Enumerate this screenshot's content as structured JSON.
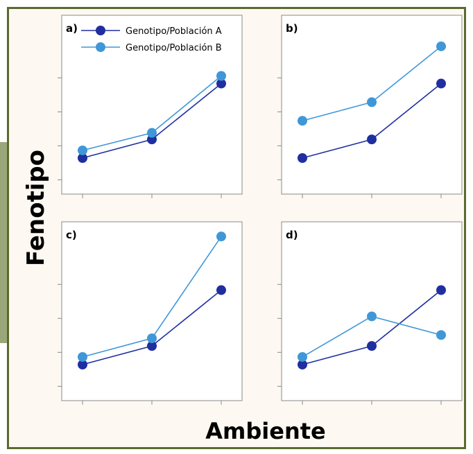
{
  "chart_data": {
    "type": "line",
    "xlabel": "Ambiente",
    "ylabel": "Fenotipo",
    "colors": {
      "A": "#1f2fa0",
      "B": "#3f97d8"
    },
    "legend": {
      "placement": "top-left (panel a)",
      "entries": [
        "Genotipo/Población A",
        "Genotipo/Población B"
      ]
    },
    "panels": [
      {
        "label": "a)",
        "x": [
          1,
          2,
          3
        ],
        "ylim": [
          0,
          1
        ],
        "series": [
          {
            "name": "Genotipo/Población A",
            "values": [
              0.32,
              0.49,
              1.0
            ]
          },
          {
            "name": "Genotipo/Población B",
            "values": [
              0.39,
              0.55,
              1.07
            ]
          }
        ]
      },
      {
        "label": "b)",
        "x": [
          1,
          2,
          3
        ],
        "ylim": [
          0,
          1
        ],
        "series": [
          {
            "name": "Genotipo/Población A",
            "values": [
              0.32,
              0.49,
              1.0
            ]
          },
          {
            "name": "Genotipo/Población B",
            "values": [
              0.66,
              0.83,
              1.34
            ]
          }
        ]
      },
      {
        "label": "c)",
        "x": [
          1,
          2,
          3
        ],
        "ylim": [
          0,
          1
        ],
        "series": [
          {
            "name": "Genotipo/Población A",
            "values": [
              0.32,
              0.49,
              1.0
            ]
          },
          {
            "name": "Genotipo/Población B",
            "values": [
              0.39,
              0.56,
              1.49
            ]
          }
        ]
      },
      {
        "label": "d)",
        "x": [
          1,
          2,
          3
        ],
        "ylim": [
          0,
          1
        ],
        "series": [
          {
            "name": "Genotipo/Población A",
            "values": [
              0.32,
              0.49,
              1.0
            ]
          },
          {
            "name": "Genotipo/Población B",
            "values": [
              0.39,
              0.76,
              0.59
            ]
          }
        ]
      }
    ]
  }
}
